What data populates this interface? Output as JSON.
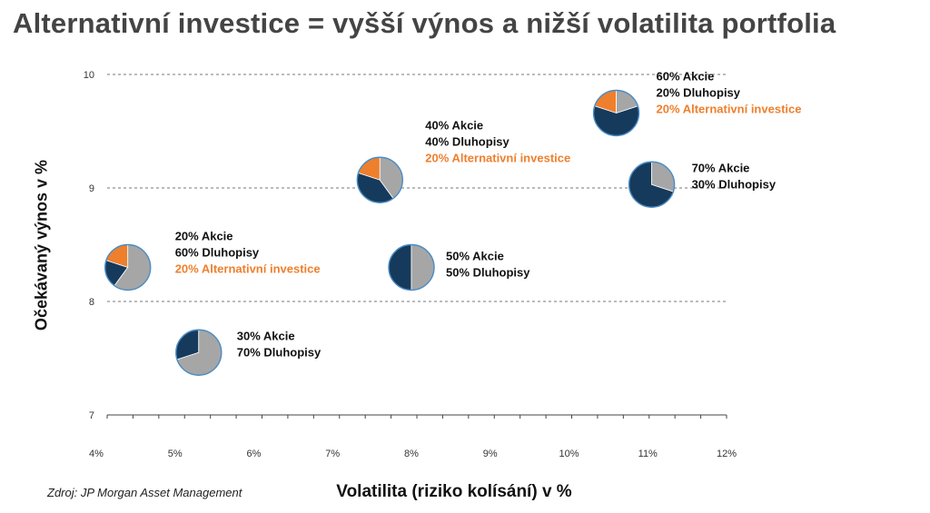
{
  "title": "Alternativní investice = vyšší výnos a nižší volatilita portfolia",
  "source_note": "Zdroj: JP Morgan Asset Management",
  "colors": {
    "akcie": "#163a5c",
    "dluhopisy": "#a6a6a6",
    "alternativni": "#ee7f2d",
    "label_alt": "#ee7f2d"
  },
  "chart_data": {
    "type": "scatter",
    "xlabel": "Volatilita (riziko kolísání) v %",
    "ylabel": "Očekávaný výnos v %",
    "xlim": [
      4,
      12
    ],
    "ylim": [
      7,
      10
    ],
    "x_ticks": [
      "4%",
      "5%",
      "6%",
      "7%",
      "8%",
      "9%",
      "10%",
      "11%",
      "12%"
    ],
    "y_ticks": [
      "7",
      "8",
      "9",
      "10"
    ],
    "grid": "horizontal dashed",
    "points": [
      {
        "x": 5.3,
        "y": 7.55,
        "akcie": 30,
        "dluhopisy": 70,
        "alternativni": 0,
        "labels": [
          "30% Akcie",
          "70% Dluhopisy"
        ]
      },
      {
        "x": 4.4,
        "y": 8.3,
        "akcie": 20,
        "dluhopisy": 60,
        "alternativni": 20,
        "labels": [
          "20% Akcie",
          "60% Dluhopisy",
          "20% Alternativní investice"
        ]
      },
      {
        "x": 8.0,
        "y": 8.3,
        "akcie": 50,
        "dluhopisy": 50,
        "alternativni": 0,
        "labels": [
          "50% Akcie",
          "50% Dluhopisy"
        ]
      },
      {
        "x": 7.6,
        "y": 9.07,
        "akcie": 40,
        "dluhopisy": 40,
        "alternativni": 20,
        "labels": [
          "40% Akcie",
          "40% Dluhopisy",
          "20% Alternativní investice"
        ]
      },
      {
        "x": 10.6,
        "y": 9.66,
        "akcie": 60,
        "dluhopisy": 20,
        "alternativni": 20,
        "labels": [
          "60% Akcie",
          "20% Dluhopisy",
          "20% Alternativní investice"
        ]
      },
      {
        "x": 11.05,
        "y": 9.03,
        "akcie": 70,
        "dluhopisy": 30,
        "alternativni": 0,
        "labels": [
          "70% Akcie",
          "30% Dluhopisy"
        ]
      }
    ]
  }
}
